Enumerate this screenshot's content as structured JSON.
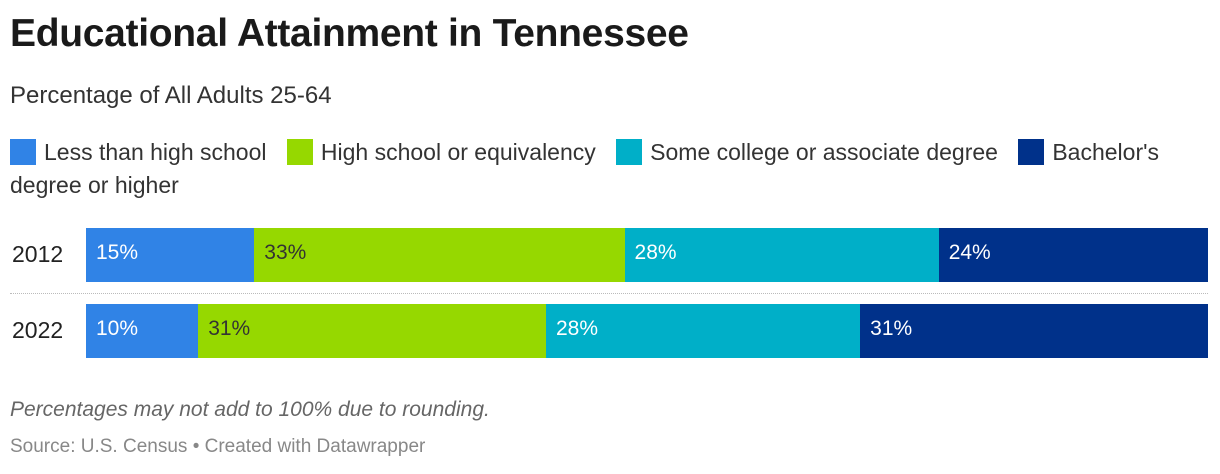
{
  "title": "Educational Attainment in Tennessee",
  "subtitle": "Percentage of All Adults 25-64",
  "legend": [
    {
      "label": "Less than high school",
      "color": "#3083e6"
    },
    {
      "label": "High school or equivalency",
      "color": "#96d800"
    },
    {
      "label": "Some college or associate degree",
      "color": "#00afc8"
    },
    {
      "label": "Bachelor's degree or higher",
      "color": "#00318a"
    }
  ],
  "note": "Percentages may not add to 100% due to rounding.",
  "source": "Source: U.S. Census • Created with Datawrapper",
  "chart_data": {
    "type": "bar",
    "stacked": true,
    "orientation": "horizontal",
    "categories": [
      "2012",
      "2022"
    ],
    "series": [
      {
        "name": "Less than high school",
        "color": "#3083e6",
        "values": [
          15,
          10
        ],
        "labels": [
          "15%",
          "10%"
        ],
        "label_color": "#ffffff"
      },
      {
        "name": "High school or equivalency",
        "color": "#96d800",
        "values": [
          33,
          31
        ],
        "labels": [
          "33%",
          "31%"
        ],
        "label_color": "#333333"
      },
      {
        "name": "Some college or associate degree",
        "color": "#00afc8",
        "values": [
          28,
          28
        ],
        "labels": [
          "28%",
          "28%"
        ],
        "label_color": "#ffffff"
      },
      {
        "name": "Bachelor's degree or higher",
        "color": "#00318a",
        "values": [
          24,
          31
        ],
        "labels": [
          "24%",
          "31%"
        ],
        "label_color": "#ffffff"
      }
    ]
  }
}
